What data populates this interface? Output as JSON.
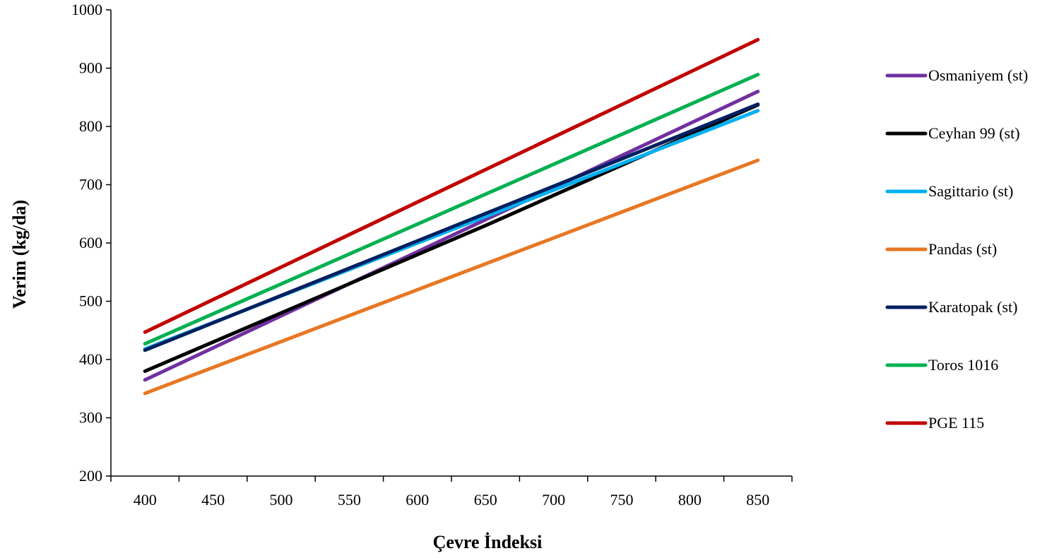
{
  "chart_data": {
    "type": "line",
    "xlabel": "Çevre İndeksi",
    "ylabel": "Verim (kg/da)",
    "xlim": [
      375,
      875
    ],
    "ylim": [
      200,
      1000
    ],
    "x_ticks": [
      400,
      450,
      500,
      550,
      600,
      650,
      700,
      750,
      800,
      850
    ],
    "y_ticks": [
      200,
      300,
      400,
      500,
      600,
      700,
      800,
      900,
      1000
    ],
    "grid": false,
    "legend_position": "right",
    "series": [
      {
        "name": "Osmaniyem (st)",
        "color": "#7030A0",
        "points": [
          [
            400,
            365
          ],
          [
            850,
            860
          ]
        ]
      },
      {
        "name": "Ceyhan 99 (st)",
        "color": "#000000",
        "points": [
          [
            400,
            380
          ],
          [
            650,
            630
          ],
          [
            850,
            837
          ]
        ]
      },
      {
        "name": "Sagittario (st)",
        "color": "#00B0F0",
        "points": [
          [
            400,
            418
          ],
          [
            850,
            827
          ]
        ]
      },
      {
        "name": "Pandas (st)",
        "color": "#E87722",
        "points": [
          [
            400,
            342
          ],
          [
            850,
            742
          ]
        ]
      },
      {
        "name": "Karatopak (st)",
        "color": "#002060",
        "points": [
          [
            400,
            416
          ],
          [
            850,
            838
          ]
        ]
      },
      {
        "name": "Toros 1016",
        "color": "#00B050",
        "points": [
          [
            400,
            427
          ],
          [
            850,
            889
          ]
        ]
      },
      {
        "name": "PGE 115",
        "color": "#C00000",
        "points": [
          [
            400,
            447
          ],
          [
            850,
            949
          ]
        ]
      }
    ]
  }
}
